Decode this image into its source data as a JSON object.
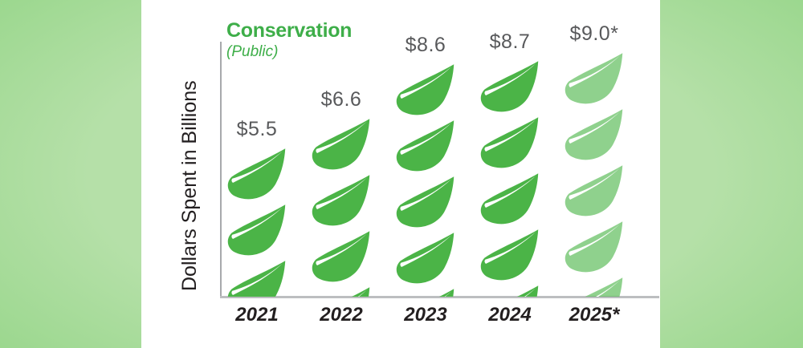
{
  "chart_data": {
    "type": "bar",
    "variant": "pictograph-leaf-stack",
    "title": "Conservation",
    "subtitle": "(Public)",
    "ylabel": "Dollars Spent in Billions",
    "xlabel": "",
    "categories": [
      "2021",
      "2022",
      "2023",
      "2024",
      "2025*"
    ],
    "values": [
      5.5,
      6.6,
      8.6,
      8.7,
      9.0
    ],
    "value_labels": [
      "$5.5",
      "$6.6",
      "$8.6",
      "$8.7",
      "$9.0*"
    ],
    "projected_index": 4,
    "icon": "leaf-icon",
    "legend_position": "none",
    "grid": false,
    "colors": {
      "leaf": "#4BB447",
      "leaf_projected": "#8FD08C",
      "title_green": "#3EAE49",
      "value_label": "#58595B",
      "category_label": "#231F20",
      "y_axis": "#A7A9AC",
      "x_axis": "#BCBEC0",
      "panel_bg": "#FFFFFF",
      "page_bg_inner": "#B5E0A8",
      "page_bg_outer": "#5CC353"
    }
  }
}
